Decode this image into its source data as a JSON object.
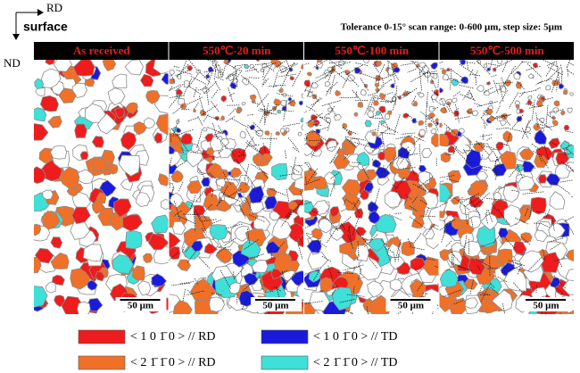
{
  "header": {
    "rd": "RD",
    "nd": "ND",
    "surface": "surface",
    "note": "Tolerance 0-15°   scan range: 0-600 μm, step size: 5μm"
  },
  "panels": [
    {
      "label": "As received",
      "scale": "50 μm"
    },
    {
      "label": "550℃-20 min",
      "scale": "50 μm"
    },
    {
      "label": "550℃-100 min",
      "scale": "50 μm"
    },
    {
      "label": "550℃-500 min",
      "scale": "50 μm"
    }
  ],
  "legend": [
    {
      "label": "< 1 0 1̄ 0 > // RD",
      "color": "#ee1c1c"
    },
    {
      "label": "< 2 1̄ 1̄ 0 > // RD",
      "color": "#f07028"
    },
    {
      "label": "< 1 0 1̄ 0 > // TD",
      "color": "#1a1adc"
    },
    {
      "label": "< 2 1̄ 1̄ 0 > // TD",
      "color": "#3fe0d8"
    }
  ]
}
